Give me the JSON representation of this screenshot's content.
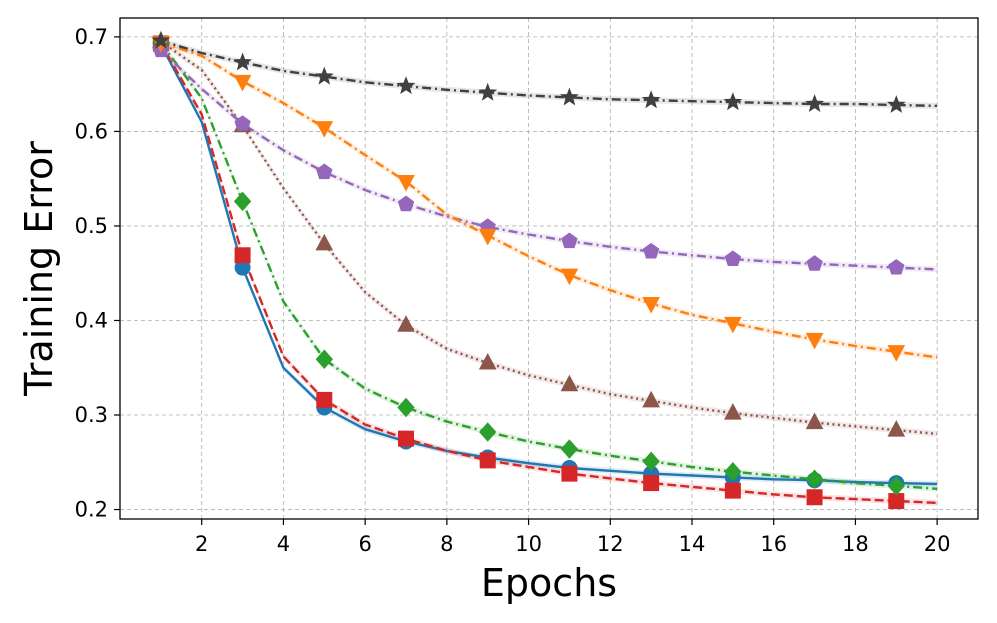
{
  "chart_data": {
    "type": "line",
    "title": "",
    "xlabel": "Epochs",
    "ylabel": "Training Error",
    "xlim": [
      0,
      21
    ],
    "ylim": [
      0.19,
      0.72
    ],
    "xticks": [
      2,
      4,
      6,
      8,
      10,
      12,
      14,
      16,
      18,
      20
    ],
    "yticks": [
      0.2,
      0.3,
      0.4,
      0.5,
      0.6,
      0.7
    ],
    "grid": true,
    "legend": "none",
    "x": [
      1,
      2,
      3,
      4,
      5,
      6,
      7,
      8,
      9,
      10,
      11,
      12,
      13,
      14,
      15,
      16,
      17,
      18,
      19,
      20
    ],
    "series": [
      {
        "name": "blue-solid-circle",
        "color": "#1f77b4",
        "dash": "solid",
        "marker": "circle",
        "values": [
          0.692,
          0.61,
          0.456,
          0.35,
          0.308,
          0.285,
          0.272,
          0.262,
          0.255,
          0.249,
          0.244,
          0.241,
          0.238,
          0.236,
          0.234,
          0.232,
          0.231,
          0.229,
          0.228,
          0.227
        ]
      },
      {
        "name": "red-dashed-square",
        "color": "#d62728",
        "dash": "dashed",
        "marker": "square",
        "values": [
          0.693,
          0.618,
          0.469,
          0.362,
          0.316,
          0.29,
          0.275,
          0.262,
          0.252,
          0.245,
          0.238,
          0.233,
          0.228,
          0.224,
          0.22,
          0.216,
          0.213,
          0.211,
          0.209,
          0.207
        ]
      },
      {
        "name": "green-dashdot-diamond",
        "color": "#2ca02c",
        "dash": "dashdot",
        "marker": "diamond",
        "values": [
          0.694,
          0.635,
          0.526,
          0.42,
          0.359,
          0.328,
          0.308,
          0.293,
          0.282,
          0.272,
          0.264,
          0.257,
          0.251,
          0.245,
          0.24,
          0.236,
          0.232,
          0.228,
          0.225,
          0.222
        ]
      },
      {
        "name": "brown-dotted-triangle-up",
        "color": "#8c564b",
        "dash": "dotted",
        "marker": "triangle-up",
        "values": [
          0.695,
          0.665,
          0.606,
          0.54,
          0.481,
          0.43,
          0.395,
          0.37,
          0.355,
          0.342,
          0.332,
          0.322,
          0.315,
          0.308,
          0.302,
          0.297,
          0.292,
          0.288,
          0.284,
          0.28
        ]
      },
      {
        "name": "purple-dashdot-pentagon",
        "color": "#9467bd",
        "dash": "dashdot",
        "marker": "pentagon",
        "values": [
          0.686,
          0.645,
          0.608,
          0.58,
          0.557,
          0.538,
          0.523,
          0.51,
          0.499,
          0.491,
          0.484,
          0.478,
          0.473,
          0.469,
          0.465,
          0.462,
          0.46,
          0.458,
          0.456,
          0.454
        ]
      },
      {
        "name": "orange-dashdot-triangle-down",
        "color": "#ff7f0e",
        "dash": "dashdot",
        "marker": "triangle-down",
        "values": [
          0.694,
          0.68,
          0.653,
          0.63,
          0.604,
          0.575,
          0.547,
          0.512,
          0.49,
          0.468,
          0.448,
          0.432,
          0.418,
          0.406,
          0.397,
          0.388,
          0.38,
          0.373,
          0.367,
          0.361
        ]
      },
      {
        "name": "gray-dashdot-star",
        "color": "#404040",
        "dash": "dashdot",
        "marker": "star",
        "values": [
          0.696,
          0.683,
          0.673,
          0.664,
          0.658,
          0.652,
          0.648,
          0.644,
          0.641,
          0.638,
          0.636,
          0.634,
          0.633,
          0.632,
          0.631,
          0.63,
          0.629,
          0.629,
          0.628,
          0.627
        ]
      }
    ]
  }
}
